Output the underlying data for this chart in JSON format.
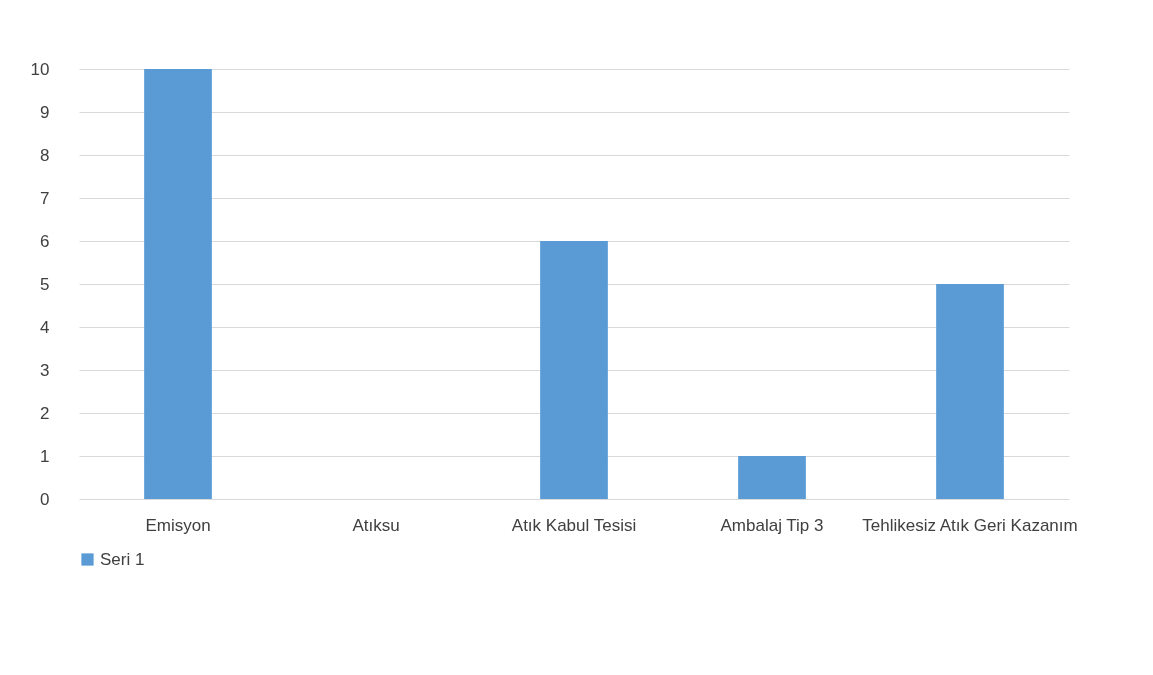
{
  "chart_data": {
    "type": "bar",
    "categories": [
      "Emisyon",
      "Atıksu",
      "Atık Kabul Tesisi",
      "Ambalaj Tip 3",
      "Tehlikesiz Atık Geri Kazanım"
    ],
    "series": [
      {
        "name": "Seri 1",
        "color": "#5b9bd5",
        "values": [
          10,
          0,
          6,
          1,
          5
        ]
      }
    ],
    "ylim": [
      0,
      10
    ],
    "yticks": [
      0,
      1,
      2,
      3,
      4,
      5,
      6,
      7,
      8,
      9,
      10
    ],
    "grid": "y",
    "legend": "bottom"
  }
}
